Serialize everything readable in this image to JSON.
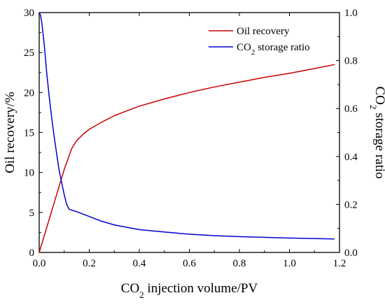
{
  "chart_data": {
    "type": "line",
    "xlabel": {
      "prefix": "CO",
      "sub": "2",
      "suffix": " injection volume/PV"
    },
    "ylabel_left": "Oil recovery/%",
    "ylabel_right": {
      "prefix": "CO",
      "sub": "2",
      "suffix": " storage ratio"
    },
    "xlim": [
      0,
      1.2
    ],
    "ylim_left": [
      0,
      30
    ],
    "ylim_right": [
      0,
      1.0
    ],
    "x_ticks": [
      "0.0",
      "0.2",
      "0.4",
      "0.6",
      "0.8",
      "1.0",
      "1.2"
    ],
    "y_left_ticks": [
      "0",
      "5",
      "10",
      "15",
      "20",
      "25",
      "30"
    ],
    "y_right_ticks": [
      "0.0",
      "0.2",
      "0.4",
      "0.6",
      "0.8",
      "1.0"
    ],
    "legend_position": "top-right",
    "grid": false,
    "series": [
      {
        "name": "Oil recovery",
        "axis": "left",
        "color": "#cc0000",
        "x": [
          0.0,
          0.05,
          0.1,
          0.13,
          0.15,
          0.18,
          0.2,
          0.25,
          0.3,
          0.35,
          0.4,
          0.5,
          0.6,
          0.7,
          0.8,
          0.9,
          1.0,
          1.1,
          1.18
        ],
        "y": [
          0.0,
          5.2,
          10.4,
          13.0,
          14.0,
          14.9,
          15.4,
          16.3,
          17.1,
          17.7,
          18.3,
          19.2,
          20.0,
          20.7,
          21.3,
          21.9,
          22.4,
          23.0,
          23.5
        ]
      },
      {
        "name": "CO2 storage ratio",
        "label": {
          "prefix": "CO",
          "sub": "2",
          "suffix": " storage ratio"
        },
        "axis": "right",
        "color": "#0000cc",
        "x": [
          0.0,
          0.005,
          0.01,
          0.02,
          0.03,
          0.04,
          0.05,
          0.06,
          0.07,
          0.08,
          0.09,
          0.1,
          0.11,
          0.12,
          0.15,
          0.2,
          0.25,
          0.3,
          0.4,
          0.5,
          0.6,
          0.7,
          0.8,
          0.9,
          1.0,
          1.1,
          1.18
        ],
        "y": [
          1.0,
          0.99,
          0.96,
          0.87,
          0.75,
          0.65,
          0.56,
          0.48,
          0.41,
          0.34,
          0.29,
          0.24,
          0.2,
          0.18,
          0.17,
          0.15,
          0.13,
          0.115,
          0.095,
          0.085,
          0.076,
          0.07,
          0.066,
          0.063,
          0.06,
          0.058,
          0.056
        ]
      }
    ]
  }
}
